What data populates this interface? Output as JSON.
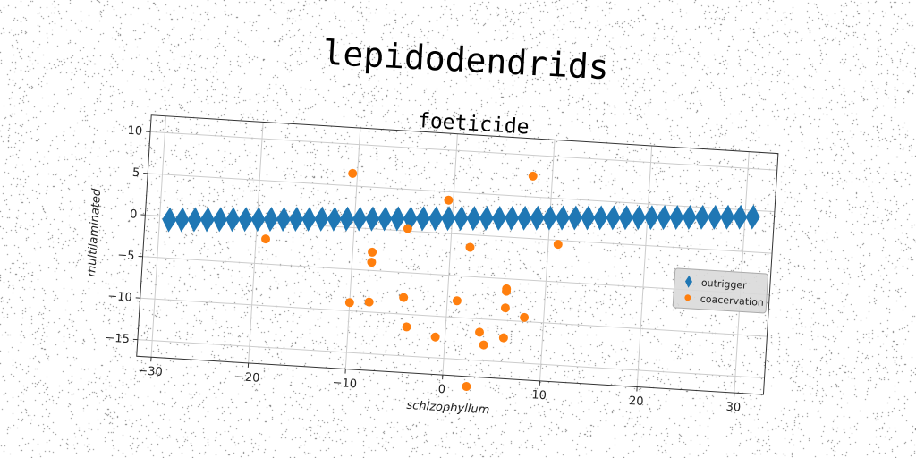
{
  "chart_data": {
    "type": "scatter",
    "suptitle": "lepidodendrids",
    "title": "foeticide",
    "xlabel": "schizophyllum",
    "ylabel": "multilaminated",
    "xlim": [
      -31.5,
      33
    ],
    "ylim": [
      -17,
      12
    ],
    "xticks": [
      -30,
      -20,
      -10,
      0,
      10,
      20,
      30
    ],
    "yticks": [
      -15,
      -10,
      -5,
      0,
      5,
      10
    ],
    "grid": true,
    "legend_position": "center-right",
    "series": [
      {
        "name": "outrigger",
        "marker": "diamond",
        "color": "#1f77b4",
        "x": [
          -29.0,
          -27.7,
          -26.4,
          -25.1,
          -23.8,
          -22.5,
          -21.2,
          -19.9,
          -18.6,
          -17.3,
          -16.0,
          -14.7,
          -13.4,
          -12.1,
          -10.8,
          -9.5,
          -8.2,
          -6.9,
          -5.6,
          -4.3,
          -3.0,
          -1.7,
          -0.4,
          0.9,
          2.2,
          3.5,
          4.8,
          6.1,
          7.4,
          8.7,
          10.0,
          11.3,
          12.6,
          13.9,
          15.2,
          16.5,
          17.8,
          19.1,
          20.4,
          21.7,
          23.0,
          24.3,
          25.6,
          26.9,
          28.2,
          29.5,
          30.8
        ],
        "y": [
          -0.4,
          -0.3,
          -0.2,
          -0.1,
          0.0,
          0.1,
          0.2,
          0.3,
          0.4,
          0.5,
          0.6,
          0.7,
          0.8,
          0.9,
          1.0,
          1.1,
          1.2,
          1.3,
          1.4,
          1.5,
          1.6,
          1.7,
          1.8,
          1.9,
          2.0,
          2.1,
          2.2,
          2.3,
          2.4,
          2.5,
          2.6,
          2.7,
          2.8,
          2.9,
          3.0,
          3.1,
          3.2,
          3.3,
          3.4,
          3.5,
          3.6,
          3.7,
          3.8,
          3.9,
          4.0,
          4.1,
          4.2
        ]
      },
      {
        "name": "coacervation",
        "marker": "circle",
        "color": "#ff7f0e",
        "x": [
          -10.5,
          8.0,
          -0.5,
          11.0,
          -4.5,
          -19.0,
          2.0,
          -8.0,
          -8.0,
          6.0,
          6.0,
          -10.0,
          -8.0,
          -4.5,
          1.0,
          6.0,
          8.0,
          -4.0,
          3.5,
          -1.0,
          6.0,
          4.0,
          2.5
        ],
        "y": [
          6.5,
          7.5,
          4.0,
          -0.5,
          0.3,
          -2.0,
          -1.5,
          -2.8,
          -4.0,
          -6.2,
          -6.5,
          -9.0,
          -8.8,
          -8.0,
          -8.0,
          -8.5,
          -9.5,
          -11.5,
          -11.6,
          -12.5,
          -12.1,
          -13.1,
          -18.2
        ]
      }
    ]
  }
}
